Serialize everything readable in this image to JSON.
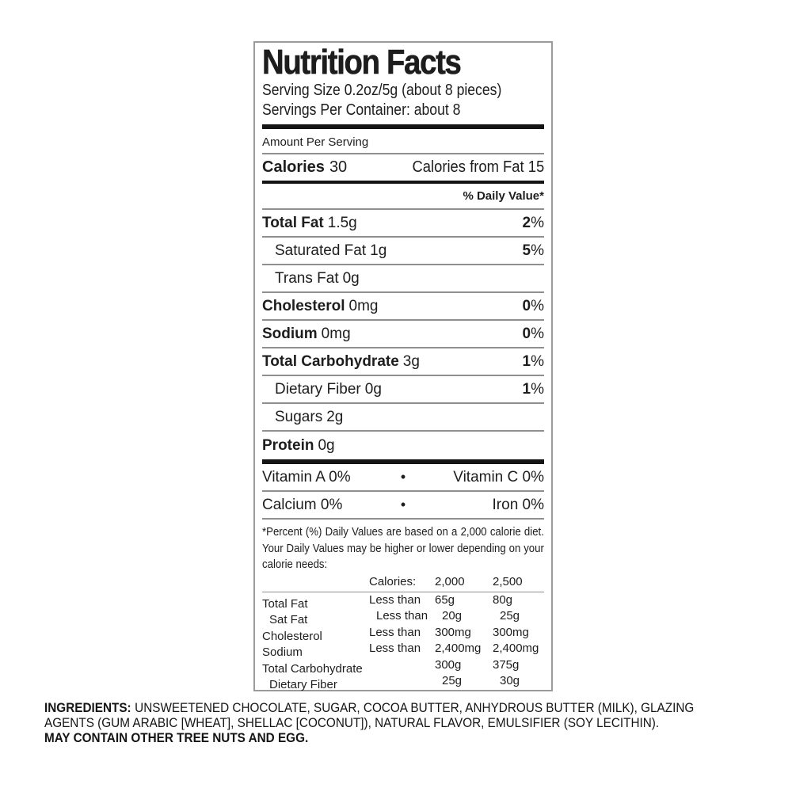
{
  "label": {
    "title": "Nutrition Facts",
    "serving_size": "Serving Size 0.2oz/5g (about 8 pieces)",
    "servings_per_container": "Servings Per Container: about 8",
    "amount_per_serving": "Amount Per Serving",
    "calories_label": "Calories",
    "calories_value": "30",
    "calories_from_fat": "Calories from Fat 15",
    "daily_value_header": "% Daily Value*",
    "percent_sign": "%",
    "bullet": "•",
    "nutrients": [
      {
        "name": "Total Fat",
        "amount": "1.5g",
        "dv": "2"
      },
      {
        "name": "Saturated Fat",
        "amount": "1g",
        "dv": "5"
      },
      {
        "name": "Trans Fat",
        "amount": "0g",
        "dv": ""
      },
      {
        "name": "Cholesterol",
        "amount": "0mg",
        "dv": "0"
      },
      {
        "name": "Sodium",
        "amount": "0mg",
        "dv": "0"
      },
      {
        "name": "Total Carbohydrate",
        "amount": "3g",
        "dv": "1"
      },
      {
        "name": "Dietary Fiber",
        "amount": "0g",
        "dv": "1"
      },
      {
        "name": "Sugars",
        "amount": "2g",
        "dv": ""
      },
      {
        "name": "Protein",
        "amount": "0g",
        "dv": ""
      }
    ],
    "vitamins": [
      {
        "left": "Vitamin A 0%",
        "right": "Vitamin C 0%"
      },
      {
        "left": "Calcium 0%",
        "right": "Iron 0%"
      }
    ],
    "footnote": "*Percent (%) Daily Values are based on a 2,000 calorie diet.  Your Daily Values may be higher or lower depending on your calorie needs:",
    "dv_table": {
      "header": {
        "calories": "Calories:",
        "c2000": "2,000",
        "c2500": "2,500"
      },
      "less_than": "Less than",
      "rows": [
        {
          "name": "Total Fat",
          "qualifier": "Less than",
          "v2000": "65g",
          "v2500": "80g"
        },
        {
          "name": "Sat Fat",
          "qualifier": "Less than",
          "v2000": "20g",
          "v2500": "25g"
        },
        {
          "name": "Cholesterol",
          "qualifier": "Less than",
          "v2000": "300mg",
          "v2500": "300mg"
        },
        {
          "name": "Sodium",
          "qualifier": "Less than",
          "v2000": "2,400mg",
          "v2500": "2,400mg"
        },
        {
          "name": "Total Carbohydrate",
          "qualifier": "",
          "v2000": "300g",
          "v2500": "375g"
        },
        {
          "name": "Dietary Fiber",
          "qualifier": "",
          "v2000": "25g",
          "v2500": "30g"
        }
      ]
    }
  },
  "ingredients": {
    "heading": "INGREDIENTS:",
    "line1_rest": "UNSWEETENED CHOCOLATE, SUGAR, COCOA BUTTER, ANHYDROUS BUTTER (MILK), GLAZING",
    "line2": "AGENTS (GUM ARABIC [WHEAT], SHELLAC [COCONUT]), NATURAL FLAVOR, EMULSIFIER (SOY LECITHIN).",
    "line3": "MAY CONTAIN OTHER TREE NUTS AND EGG."
  }
}
